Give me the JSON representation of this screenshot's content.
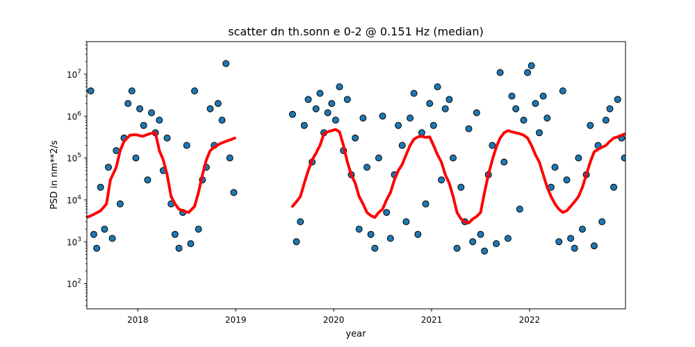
{
  "chart_data": {
    "type": "scatter",
    "title": "scatter dn th.sonn e 0-2 @ 0.151 Hz (median)",
    "xlabel": "year",
    "ylabel": "PSD in nm**2/s",
    "xscale": "linear",
    "yscale": "log",
    "xlim": [
      2017.48,
      2022.98
    ],
    "ylim": [
      25,
      60000000
    ],
    "xticks": [
      {
        "value": 2018,
        "label": "2018"
      },
      {
        "value": 2019,
        "label": "2019"
      },
      {
        "value": 2020,
        "label": "2020"
      },
      {
        "value": 2021,
        "label": "2021"
      },
      {
        "value": 2022,
        "label": "2022"
      }
    ],
    "yticks": [
      {
        "value": 100,
        "base": "10",
        "exp": "2"
      },
      {
        "value": 1000,
        "base": "10",
        "exp": "3"
      },
      {
        "value": 10000,
        "base": "10",
        "exp": "4"
      },
      {
        "value": 100000,
        "base": "10",
        "exp": "5"
      },
      {
        "value": 1000000,
        "base": "10",
        "exp": "6"
      },
      {
        "value": 10000000,
        "base": "10",
        "exp": "7"
      }
    ],
    "grid": false,
    "colors": {
      "points": "#1f77b4",
      "edge": "#000000",
      "median": "#ff0000"
    },
    "series": [
      {
        "kind": "scatter",
        "x": [
          2017.52,
          2017.55,
          2017.58,
          2017.62,
          2017.66,
          2017.7,
          2017.74,
          2017.78,
          2017.82,
          2017.86,
          2017.9,
          2017.94,
          2017.98,
          2018.02,
          2018.06,
          2018.1,
          2018.14,
          2018.18,
          2018.22,
          2018.26,
          2018.3,
          2018.34,
          2018.38,
          2018.42,
          2018.46,
          2018.5,
          2018.54,
          2018.58,
          2018.62,
          2018.66,
          2018.7,
          2018.74,
          2018.78,
          2018.82,
          2018.86,
          2018.9,
          2018.94,
          2018.98,
          2019.58,
          2019.62,
          2019.66,
          2019.7,
          2019.74,
          2019.78,
          2019.82,
          2019.86,
          2019.9,
          2019.94,
          2019.98,
          2020.02,
          2020.06,
          2020.1,
          2020.14,
          2020.18,
          2020.22,
          2020.26,
          2020.3,
          2020.34,
          2020.38,
          2020.42,
          2020.46,
          2020.5,
          2020.54,
          2020.58,
          2020.62,
          2020.66,
          2020.7,
          2020.74,
          2020.78,
          2020.82,
          2020.86,
          2020.9,
          2020.94,
          2020.98,
          2021.02,
          2021.06,
          2021.1,
          2021.14,
          2021.18,
          2021.22,
          2021.26,
          2021.3,
          2021.34,
          2021.38,
          2021.42,
          2021.46,
          2021.5,
          2021.54,
          2021.58,
          2021.62,
          2021.66,
          2021.7,
          2021.74,
          2021.78,
          2021.82,
          2021.86,
          2021.9,
          2021.94,
          2021.98,
          2022.02,
          2022.06,
          2022.1,
          2022.14,
          2022.18,
          2022.22,
          2022.26,
          2022.3,
          2022.34,
          2022.38,
          2022.42,
          2022.46,
          2022.5,
          2022.54,
          2022.58,
          2022.62,
          2022.66,
          2022.7,
          2022.74,
          2022.78,
          2022.82,
          2022.86,
          2022.9,
          2022.94,
          2022.97
        ],
        "y": [
          4000000,
          1500,
          700,
          20000,
          2000,
          60000,
          1200,
          150000,
          8000,
          300000,
          2000000,
          4000000,
          100000,
          1500000,
          600000,
          30000,
          1200000,
          400000,
          800000,
          50000,
          300000,
          8000,
          1500,
          700,
          5000,
          200000,
          900,
          4000000,
          2000,
          30000,
          60000,
          1500000,
          200000,
          2000000,
          800000,
          18000000,
          100000,
          15000,
          1100000,
          1000,
          3000,
          600000,
          2500000,
          80000,
          1500000,
          3500000,
          400000,
          1200000,
          2000000,
          800000,
          5000000,
          150000,
          2500000,
          40000,
          300000,
          2000,
          900000,
          60000,
          1500,
          700,
          100000,
          1000000,
          5000,
          1200,
          40000,
          600000,
          200000,
          3000,
          900000,
          3500000,
          1500,
          400000,
          8000,
          2000000,
          600000,
          5000000,
          30000,
          1500000,
          2500000,
          100000,
          700,
          20000,
          3000,
          500000,
          1000,
          1200000,
          1500,
          600,
          40000,
          200000,
          900,
          11000000,
          80000,
          1200,
          3000000,
          1500000,
          6000,
          800000,
          11000000,
          16000000,
          2000000,
          400000,
          3000000,
          900000,
          20000,
          60000,
          1000,
          4000000,
          30000,
          1200,
          700,
          100000,
          2000,
          40000,
          600000,
          800,
          200000,
          3000,
          800000,
          1500000,
          20000,
          2500000,
          300000,
          100000
        ]
      },
      {
        "kind": "line",
        "name": "median",
        "segments": [
          {
            "x": [
              2017.48,
              2017.55,
              2017.62,
              2017.68,
              2017.72,
              2017.78,
              2017.82,
              2017.86,
              2017.92,
              2017.98,
              2018.05,
              2018.12,
              2018.18,
              2018.22,
              2018.26,
              2018.3,
              2018.34,
              2018.38,
              2018.42,
              2018.46,
              2018.52,
              2018.58,
              2018.62,
              2018.66,
              2018.7,
              2018.74,
              2018.78,
              2018.84,
              2018.9,
              2018.96,
              2018.99
            ],
            "y": [
              3800,
              4500,
              5500,
              8000,
              30000,
              60000,
              150000,
              250000,
              350000,
              360000,
              330000,
              380000,
              400000,
              150000,
              90000,
              40000,
              12000,
              8000,
              6000,
              5500,
              5000,
              7000,
              15000,
              40000,
              90000,
              150000,
              180000,
              220000,
              250000,
              280000,
              300000
            ]
          },
          {
            "x": [
              2019.58,
              2019.62,
              2019.66,
              2019.7,
              2019.74,
              2019.78,
              2019.82,
              2019.86,
              2019.9,
              2019.94,
              2019.98,
              2020.02,
              2020.06,
              2020.1,
              2020.14,
              2020.18,
              2020.22,
              2020.26,
              2020.3,
              2020.34,
              2020.38,
              2020.42,
              2020.46,
              2020.5,
              2020.54,
              2020.58,
              2020.62,
              2020.66,
              2020.7,
              2020.74,
              2020.78,
              2020.82,
              2020.86,
              2020.9,
              2020.94,
              2020.98,
              2021.02,
              2021.06,
              2021.1,
              2021.14,
              2021.18,
              2021.22,
              2021.26,
              2021.3,
              2021.34,
              2021.38,
              2021.42,
              2021.46,
              2021.5,
              2021.54,
              2021.58,
              2021.62,
              2021.66,
              2021.7,
              2021.74,
              2021.78,
              2021.82,
              2021.86,
              2021.9,
              2021.94,
              2021.98,
              2022.02,
              2022.06,
              2022.1,
              2022.14,
              2022.18,
              2022.22,
              2022.26,
              2022.3,
              2022.34,
              2022.38,
              2022.42,
              2022.46,
              2022.5,
              2022.54,
              2022.58,
              2022.62,
              2022.66,
              2022.7,
              2022.74,
              2022.78,
              2022.82,
              2022.86,
              2022.9,
              2022.94,
              2022.98
            ],
            "y": [
              7000,
              9000,
              12000,
              25000,
              50000,
              90000,
              130000,
              200000,
              380000,
              420000,
              450000,
              480000,
              420000,
              200000,
              80000,
              40000,
              25000,
              12000,
              8000,
              5000,
              4200,
              3800,
              5000,
              6000,
              10000,
              15000,
              30000,
              50000,
              70000,
              120000,
              200000,
              280000,
              320000,
              330000,
              310000,
              320000,
              200000,
              120000,
              80000,
              40000,
              25000,
              12000,
              5000,
              3500,
              3000,
              2800,
              3500,
              4000,
              5000,
              15000,
              40000,
              90000,
              180000,
              300000,
              400000,
              450000,
              420000,
              400000,
              380000,
              350000,
              300000,
              200000,
              120000,
              80000,
              40000,
              20000,
              12000,
              8000,
              6000,
              5000,
              5500,
              7000,
              9000,
              12000,
              20000,
              40000,
              80000,
              140000,
              160000,
              180000,
              200000,
              250000,
              300000,
              320000,
              350000,
              380000
            ]
          }
        ]
      }
    ]
  }
}
